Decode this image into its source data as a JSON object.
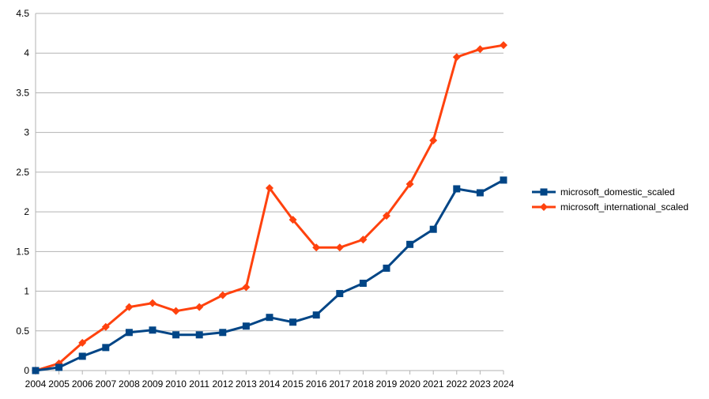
{
  "chart_data": {
    "type": "line",
    "title": "",
    "xlabel": "",
    "ylabel": "",
    "categories": [
      "2004",
      "2005",
      "2006",
      "2007",
      "2008",
      "2009",
      "2010",
      "2011",
      "2012",
      "2013",
      "2014",
      "2015",
      "2016",
      "2017",
      "2018",
      "2019",
      "2020",
      "2021",
      "2022",
      "2023",
      "2024"
    ],
    "ylim": [
      0,
      4.5
    ],
    "yticks": [
      "0",
      "0.5",
      "1",
      "1.5",
      "2",
      "2.5",
      "3",
      "3.5",
      "4",
      "4.5"
    ],
    "grid": true,
    "legend_position": "right",
    "series": [
      {
        "name": "microsoft_domestic_scaled",
        "color": "#004586",
        "marker": "square",
        "values": [
          0.0,
          0.04,
          0.18,
          0.29,
          0.48,
          0.51,
          0.45,
          0.45,
          0.48,
          0.56,
          0.67,
          0.61,
          0.7,
          0.97,
          1.1,
          1.29,
          1.59,
          1.78,
          2.29,
          2.24,
          2.4
        ]
      },
      {
        "name": "microsoft_international_scaled",
        "color": "#ff420e",
        "marker": "diamond",
        "values": [
          0.0,
          0.09,
          0.35,
          0.55,
          0.8,
          0.85,
          0.75,
          0.8,
          0.95,
          1.05,
          2.3,
          1.9,
          1.55,
          1.55,
          1.65,
          1.95,
          2.35,
          2.9,
          3.95,
          4.05,
          4.1
        ]
      }
    ]
  }
}
